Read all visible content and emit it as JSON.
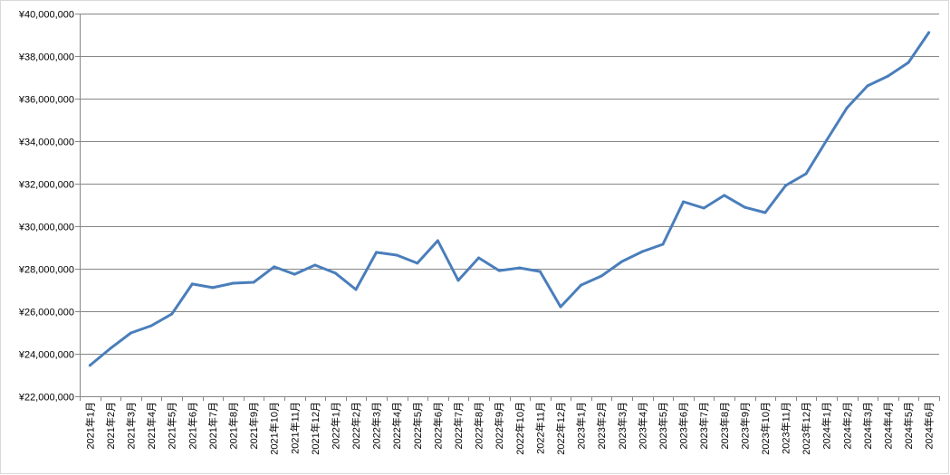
{
  "chart_data": {
    "type": "line",
    "title": "",
    "xlabel": "",
    "ylabel": "",
    "ylim": [
      22000000,
      40000000
    ],
    "ytick_step": 2000000,
    "yticks": [
      "¥22,000,000",
      "¥24,000,000",
      "¥26,000,000",
      "¥28,000,000",
      "¥30,000,000",
      "¥32,000,000",
      "¥34,000,000",
      "¥36,000,000",
      "¥38,000,000",
      "¥40,000,000"
    ],
    "grid": true,
    "legend": "none",
    "line_color": "#4a7ebb",
    "categories": [
      "2021年1月",
      "2021年2月",
      "2021年3月",
      "2021年4月",
      "2021年5月",
      "2021年6月",
      "2021年7月",
      "2021年8月",
      "2021年9月",
      "2021年10月",
      "2021年11月",
      "2021年12月",
      "2022年1月",
      "2022年2月",
      "2022年3月",
      "2022年4月",
      "2022年5月",
      "2022年6月",
      "2022年7月",
      "2022年8月",
      "2022年9月",
      "2022年10月",
      "2022年11月",
      "2022年12月",
      "2023年1月",
      "2023年2月",
      "2023年3月",
      "2023年4月",
      "2023年5月",
      "2023年6月",
      "2023年7月",
      "2023年8月",
      "2023年9月",
      "2023年10月",
      "2023年11月",
      "2023年12月",
      "2024年1月",
      "2024年2月",
      "2024年3月",
      "2024年4月",
      "2024年5月",
      "2024年6月"
    ],
    "values": [
      23450000,
      24250000,
      24980000,
      25320000,
      25870000,
      27280000,
      27110000,
      27320000,
      27360000,
      28090000,
      27740000,
      28170000,
      27790000,
      27020000,
      28770000,
      28640000,
      28260000,
      29320000,
      27450000,
      28510000,
      27910000,
      28040000,
      27870000,
      26210000,
      27230000,
      27660000,
      28340000,
      28810000,
      29150000,
      31150000,
      30850000,
      31450000,
      30890000,
      30640000,
      31910000,
      32470000,
      34040000,
      35570000,
      36600000,
      37060000,
      37700000,
      39110000
    ]
  }
}
